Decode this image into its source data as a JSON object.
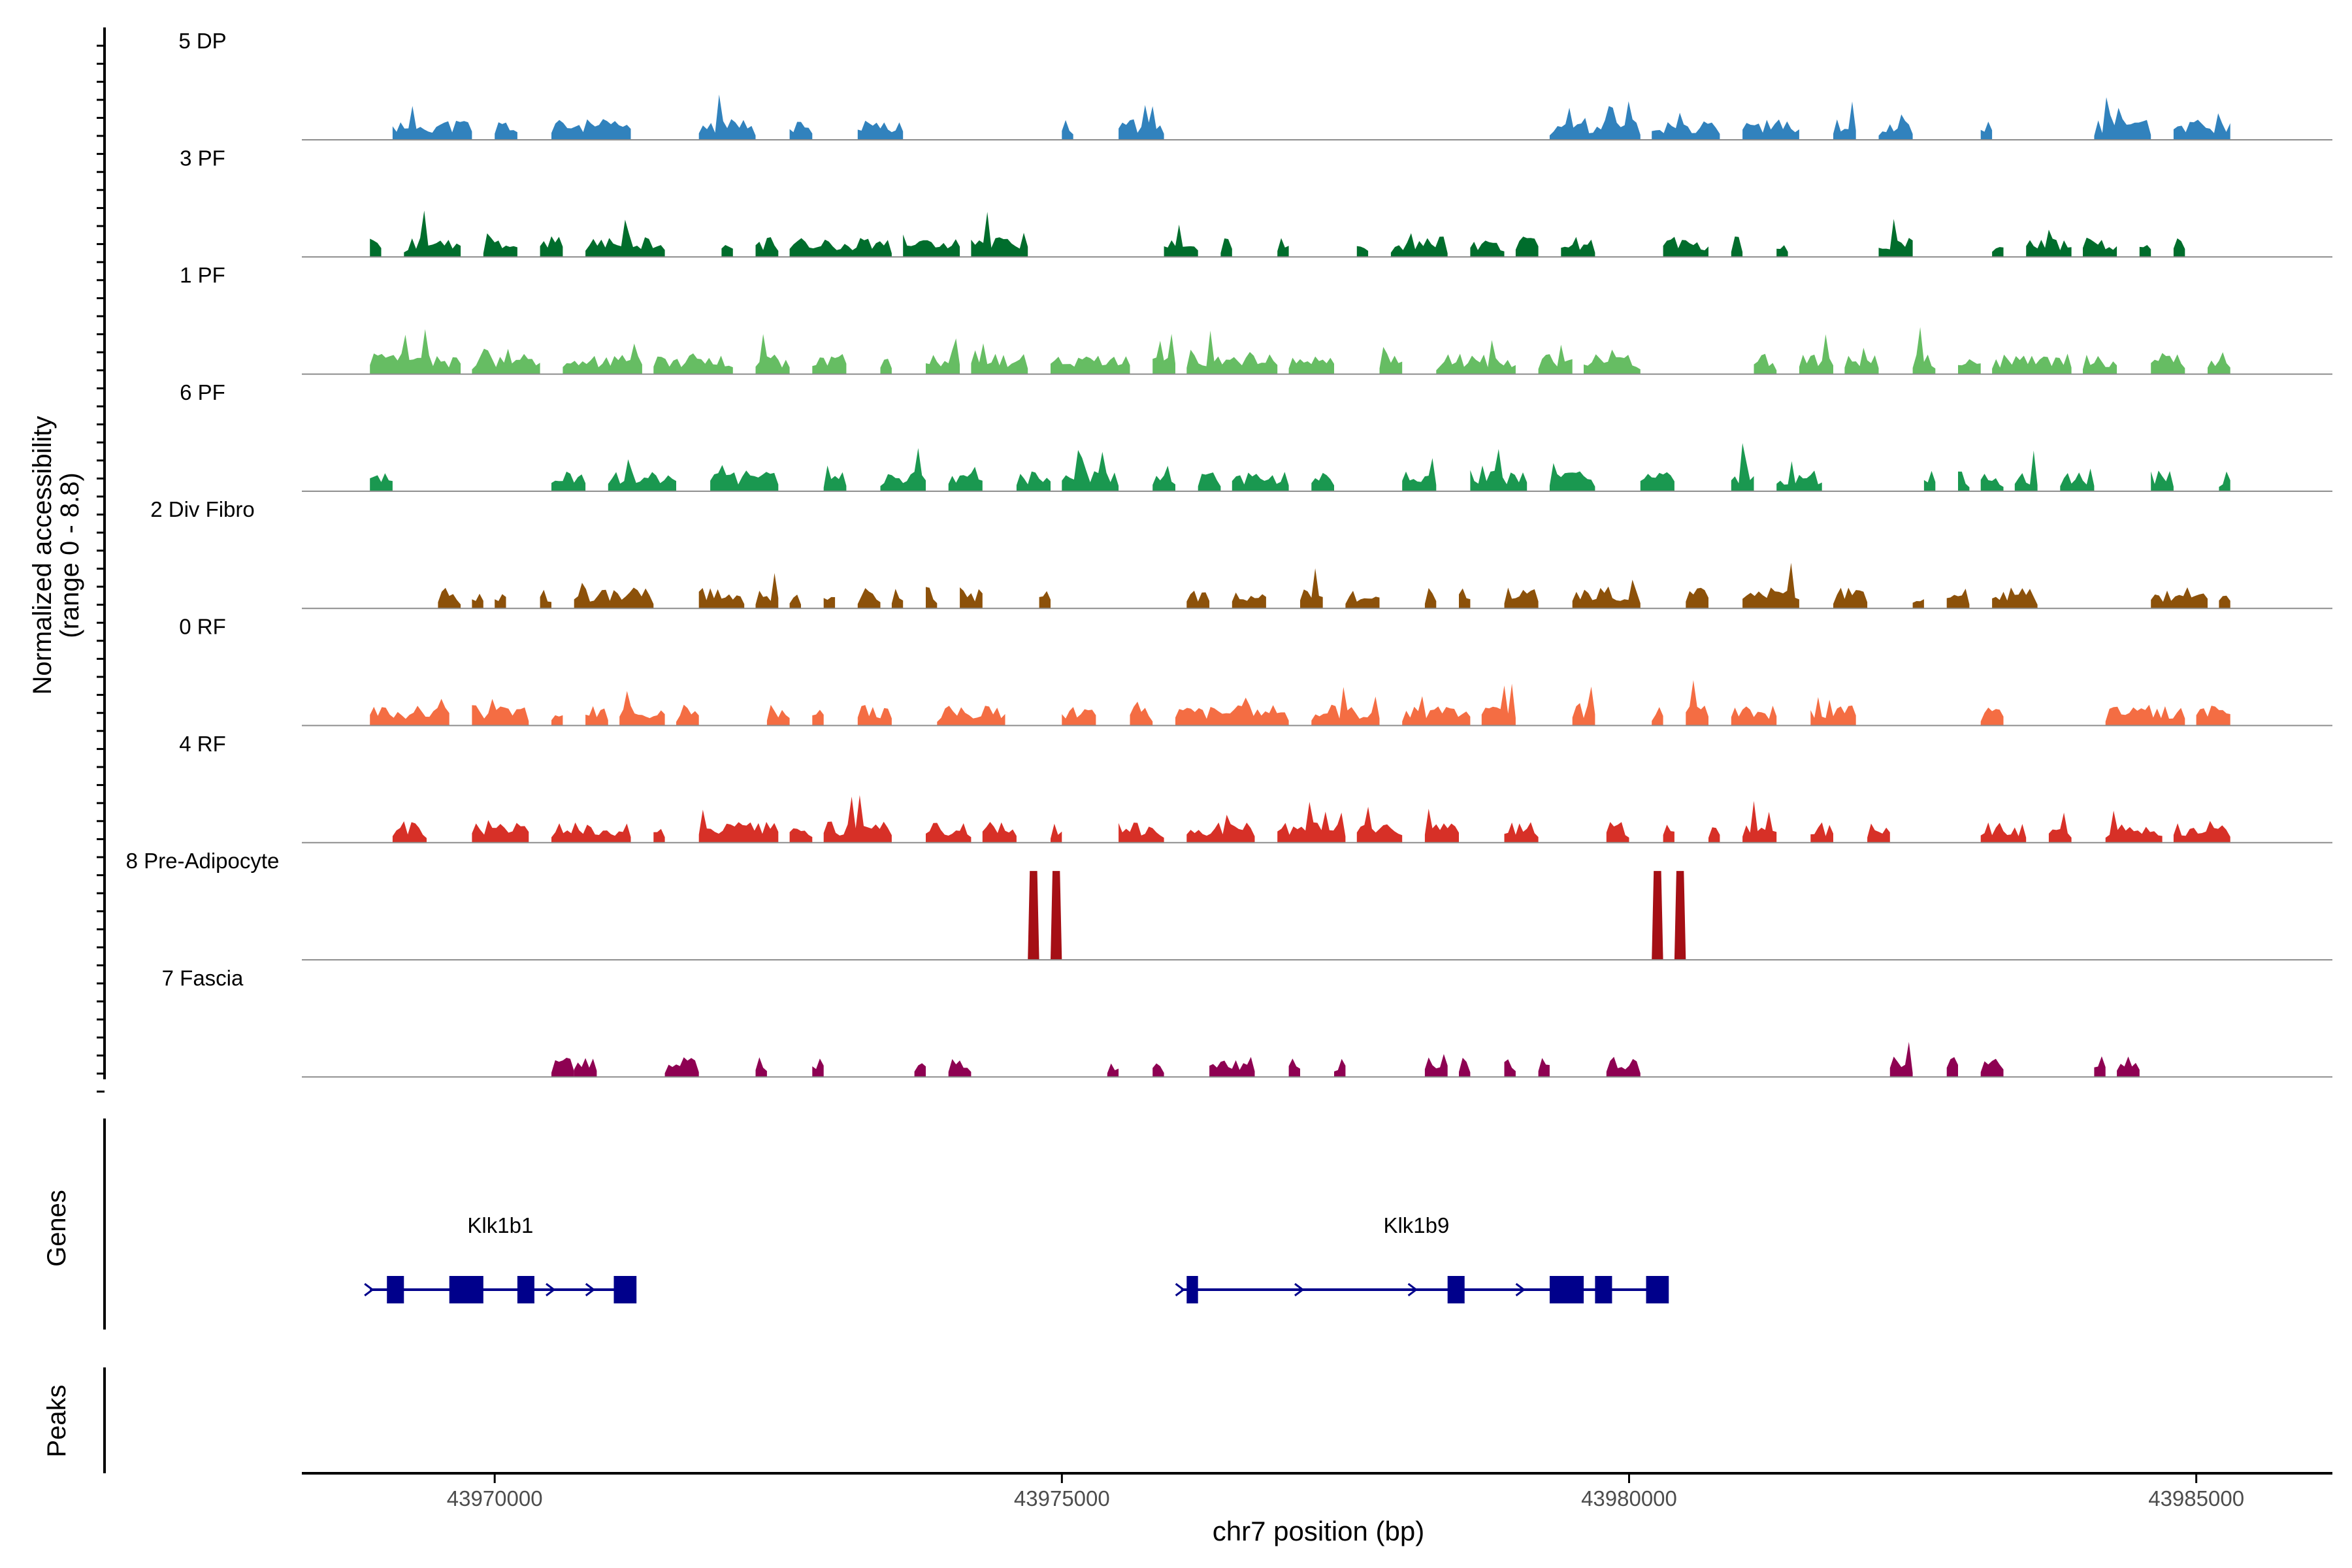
{
  "chart_data": {
    "type": "coverage-track",
    "ylabel_line1": "Normalized accessibility",
    "ylabel_line2": "(range 0 - 8.8)",
    "y_range": [
      0,
      8.8
    ],
    "xlabel": "chr7 position (bp)",
    "xlim": [
      43968300,
      43986200
    ],
    "x_ticks": [
      43970000,
      43975000,
      43980000,
      43985000
    ],
    "x_tick_labels": [
      "43970000",
      "43975000",
      "43980000",
      "43985000"
    ],
    "genes_label": "Genes",
    "peaks_label": "Peaks",
    "tracks": [
      {
        "name": "5 DP",
        "color": "#3182bd",
        "seed": 11,
        "pairs": [
          [
            43969.1,
            43969.8
          ],
          [
            43970.0,
            43970.2
          ],
          [
            43970.5,
            43971.2
          ],
          [
            43971.8,
            43972.3
          ],
          [
            43972.6,
            43972.8
          ],
          [
            43973.2,
            43973.6
          ],
          [
            43975.0,
            43975.1
          ],
          [
            43975.5,
            43975.9
          ],
          [
            43979.3,
            43980.1
          ],
          [
            43980.2,
            43980.8
          ],
          [
            43981.0,
            43981.5
          ],
          [
            43981.8,
            43982.0
          ],
          [
            43982.2,
            43982.5
          ],
          [
            43983.1,
            43983.2
          ],
          [
            43984.1,
            43984.6
          ],
          [
            43984.8,
            43985.3
          ]
        ]
      },
      {
        "name": "3 PF",
        "color": "#006d2c",
        "seed": 23,
        "pairs": [
          [
            43968.9,
            43969.0
          ],
          [
            43969.2,
            43969.7
          ],
          [
            43969.9,
            43970.2
          ],
          [
            43970.4,
            43970.6
          ],
          [
            43970.8,
            43971.5
          ],
          [
            43972.0,
            43972.1
          ],
          [
            43972.3,
            43972.5
          ],
          [
            43972.6,
            43973.5
          ],
          [
            43973.6,
            43974.1
          ],
          [
            43974.2,
            43974.7
          ],
          [
            43975.9,
            43976.2
          ],
          [
            43976.4,
            43976.5
          ],
          [
            43976.9,
            43977.0
          ],
          [
            43977.6,
            43977.7
          ],
          [
            43977.9,
            43978.4
          ],
          [
            43978.6,
            43978.9
          ],
          [
            43979.0,
            43979.2
          ],
          [
            43979.4,
            43979.7
          ],
          [
            43980.3,
            43980.7
          ],
          [
            43980.9,
            43981.0
          ],
          [
            43981.3,
            43981.4
          ],
          [
            43982.2,
            43982.5
          ],
          [
            43983.2,
            43983.3
          ],
          [
            43983.5,
            43983.9
          ],
          [
            43984.0,
            43984.3
          ],
          [
            43984.5,
            43984.6
          ],
          [
            43984.8,
            43984.9
          ]
        ]
      },
      {
        "name": "1 PF",
        "color": "#66bd63",
        "seed": 37,
        "pairs": [
          [
            43968.9,
            43969.7
          ],
          [
            43969.8,
            43970.4
          ],
          [
            43970.6,
            43971.3
          ],
          [
            43971.4,
            43972.1
          ],
          [
            43972.3,
            43972.6
          ],
          [
            43972.8,
            43973.1
          ],
          [
            43973.4,
            43973.5
          ],
          [
            43973.8,
            43974.1
          ],
          [
            43974.2,
            43974.7
          ],
          [
            43974.9,
            43975.6
          ],
          [
            43975.8,
            43976.0
          ],
          [
            43976.1,
            43976.9
          ],
          [
            43977.0,
            43977.4
          ],
          [
            43977.8,
            43978.0
          ],
          [
            43978.3,
            43979.0
          ],
          [
            43979.2,
            43979.5
          ],
          [
            43979.6,
            43980.1
          ],
          [
            43981.1,
            43981.3
          ],
          [
            43981.5,
            43981.8
          ],
          [
            43981.9,
            43982.2
          ],
          [
            43982.5,
            43982.7
          ],
          [
            43982.9,
            43983.1
          ],
          [
            43983.2,
            43983.9
          ],
          [
            43984.0,
            43984.3
          ],
          [
            43984.6,
            43984.9
          ],
          [
            43985.1,
            43985.3
          ]
        ]
      },
      {
        "name": "6 PF",
        "color": "#1a9850",
        "seed": 41,
        "pairs": [
          [
            43968.9,
            43969.1
          ],
          [
            43970.5,
            43970.8
          ],
          [
            43971.0,
            43971.6
          ],
          [
            43971.9,
            43972.5
          ],
          [
            43972.9,
            43973.1
          ],
          [
            43973.4,
            43973.8
          ],
          [
            43974.0,
            43974.3
          ],
          [
            43974.6,
            43974.9
          ],
          [
            43975.0,
            43975.5
          ],
          [
            43975.8,
            43976.0
          ],
          [
            43976.2,
            43976.4
          ],
          [
            43976.5,
            43977.0
          ],
          [
            43977.2,
            43977.4
          ],
          [
            43978.0,
            43978.3
          ],
          [
            43978.6,
            43979.1
          ],
          [
            43979.3,
            43979.7
          ],
          [
            43980.1,
            43980.4
          ],
          [
            43980.9,
            43981.1
          ],
          [
            43981.3,
            43981.7
          ],
          [
            43982.6,
            43982.7
          ],
          [
            43982.9,
            43983.0
          ],
          [
            43983.1,
            43983.3
          ],
          [
            43983.4,
            43983.6
          ],
          [
            43983.8,
            43984.1
          ],
          [
            43984.6,
            43984.8
          ],
          [
            43985.2,
            43985.3
          ]
        ]
      },
      {
        "name": "2 Div Fibro",
        "color": "#8c510a",
        "seed": 53,
        "pairs": [
          [
            43969.5,
            43969.7
          ],
          [
            43969.8,
            43969.9
          ],
          [
            43970.0,
            43970.1
          ],
          [
            43970.4,
            43970.5
          ],
          [
            43970.7,
            43971.4
          ],
          [
            43971.8,
            43972.2
          ],
          [
            43972.3,
            43972.5
          ],
          [
            43972.6,
            43972.7
          ],
          [
            43972.9,
            43973.0
          ],
          [
            43973.2,
            43973.4
          ],
          [
            43973.5,
            43973.6
          ],
          [
            43973.8,
            43973.9
          ],
          [
            43974.1,
            43974.3
          ],
          [
            43974.8,
            43974.9
          ],
          [
            43976.1,
            43976.3
          ],
          [
            43976.5,
            43976.8
          ],
          [
            43977.1,
            43977.3
          ],
          [
            43977.5,
            43977.8
          ],
          [
            43978.2,
            43978.3
          ],
          [
            43978.5,
            43978.6
          ],
          [
            43978.9,
            43979.2
          ],
          [
            43979.5,
            43980.1
          ],
          [
            43980.5,
            43980.7
          ],
          [
            43981.0,
            43981.5
          ],
          [
            43981.8,
            43982.1
          ],
          [
            43982.5,
            43982.6
          ],
          [
            43982.8,
            43983.0
          ],
          [
            43983.2,
            43983.6
          ],
          [
            43984.6,
            43985.1
          ],
          [
            43985.2,
            43985.3
          ]
        ]
      },
      {
        "name": "0 RF",
        "color": "#f46d43",
        "seed": 67,
        "pairs": [
          [
            43968.9,
            43969.6
          ],
          [
            43969.8,
            43970.3
          ],
          [
            43970.5,
            43970.6
          ],
          [
            43970.8,
            43971.0
          ],
          [
            43971.1,
            43971.5
          ],
          [
            43971.6,
            43971.8
          ],
          [
            43972.4,
            43972.6
          ],
          [
            43972.8,
            43972.9
          ],
          [
            43973.2,
            43973.5
          ],
          [
            43973.9,
            43974.5
          ],
          [
            43975.0,
            43975.3
          ],
          [
            43975.6,
            43975.8
          ],
          [
            43976.0,
            43977.0
          ],
          [
            43977.2,
            43977.8
          ],
          [
            43978.0,
            43978.6
          ],
          [
            43978.7,
            43979.0
          ],
          [
            43979.5,
            43979.7
          ],
          [
            43980.2,
            43980.3
          ],
          [
            43980.5,
            43980.7
          ],
          [
            43980.9,
            43981.3
          ],
          [
            43981.6,
            43982.0
          ],
          [
            43983.1,
            43983.3
          ],
          [
            43984.2,
            43984.9
          ],
          [
            43985.0,
            43985.3
          ]
        ]
      },
      {
        "name": "4 RF",
        "color": "#d73027",
        "seed": 79,
        "pairs": [
          [
            43969.1,
            43969.4
          ],
          [
            43969.8,
            43970.3
          ],
          [
            43970.5,
            43971.2
          ],
          [
            43971.4,
            43971.5
          ],
          [
            43971.8,
            43972.5
          ],
          [
            43972.6,
            43972.8
          ],
          [
            43972.9,
            43973.5
          ],
          [
            43973.8,
            43974.2
          ],
          [
            43974.3,
            43974.6
          ],
          [
            43974.9,
            43975.0
          ],
          [
            43975.5,
            43975.9
          ],
          [
            43976.1,
            43976.7
          ],
          [
            43976.9,
            43977.5
          ],
          [
            43977.6,
            43978.0
          ],
          [
            43978.2,
            43978.5
          ],
          [
            43978.9,
            43979.2
          ],
          [
            43979.8,
            43980.0
          ],
          [
            43980.3,
            43980.4
          ],
          [
            43980.7,
            43980.8
          ],
          [
            43981.0,
            43981.3
          ],
          [
            43981.6,
            43981.8
          ],
          [
            43982.1,
            43982.3
          ],
          [
            43983.1,
            43983.5
          ],
          [
            43983.7,
            43983.9
          ],
          [
            43984.2,
            43984.7
          ],
          [
            43984.8,
            43985.3
          ]
        ]
      },
      {
        "name": "8 Pre-Adipocyte",
        "color": "#a50f15",
        "seed": 83,
        "pairs": [
          [
            43974.7,
            43974.8
          ],
          [
            43974.9,
            43975.0
          ],
          [
            43980.2,
            43980.3
          ],
          [
            43980.4,
            43980.5
          ]
        ]
      },
      {
        "name": "7 Fascia",
        "color": "#8e0152",
        "seed": 97,
        "pairs": [
          [
            43970.5,
            43970.7
          ],
          [
            43970.7,
            43970.9
          ],
          [
            43971.5,
            43971.8
          ],
          [
            43972.3,
            43972.4
          ],
          [
            43972.8,
            43972.9
          ],
          [
            43973.7,
            43973.8
          ],
          [
            43974.0,
            43974.2
          ],
          [
            43975.4,
            43975.5
          ],
          [
            43975.8,
            43975.9
          ],
          [
            43976.3,
            43976.7
          ],
          [
            43977.0,
            43977.1
          ],
          [
            43977.4,
            43977.5
          ],
          [
            43978.2,
            43978.4
          ],
          [
            43978.5,
            43978.6
          ],
          [
            43978.9,
            43979.0
          ],
          [
            43979.2,
            43979.3
          ],
          [
            43979.8,
            43980.1
          ],
          [
            43982.3,
            43982.5
          ],
          [
            43982.8,
            43982.9
          ],
          [
            43983.1,
            43983.3
          ],
          [
            43984.1,
            43984.2
          ],
          [
            43984.3,
            43984.5
          ]
        ]
      }
    ],
    "genes": [
      {
        "name": "Klk1b1",
        "start": 43968.9,
        "end": 43971.2,
        "strand": "+",
        "exons": [
          [
            43969.05,
            43969.2
          ],
          [
            43969.6,
            43969.9
          ],
          [
            43970.2,
            43970.35
          ],
          [
            43971.05,
            43971.25
          ]
        ],
        "arrows": [
          43969.85,
          43970.5,
          43970.85
        ]
      },
      {
        "name": "Klk1b9",
        "start": 43976.05,
        "end": 43980.2,
        "strand": "+",
        "exons": [
          [
            43976.1,
            43976.2
          ],
          [
            43978.4,
            43978.55
          ],
          [
            43979.3,
            43979.6
          ],
          [
            43979.7,
            43979.85
          ],
          [
            43980.15,
            43980.35
          ]
        ],
        "arrows": [
          43977.1,
          43978.1,
          43979.05
        ]
      }
    ]
  }
}
